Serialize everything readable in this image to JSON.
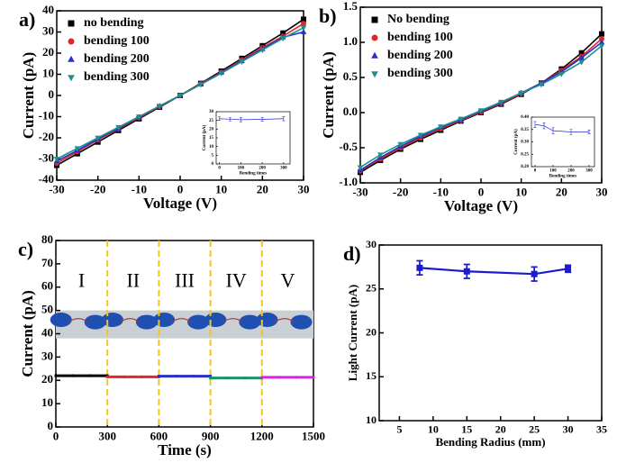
{
  "chart_data": [
    {
      "type": "line",
      "label": "a)",
      "xlabel": "Voltage  (V)",
      "ylabel": "Current (pA)",
      "xlim": [
        -30,
        30
      ],
      "ylim": [
        -40,
        40
      ],
      "xticks": [
        -30,
        -20,
        -10,
        0,
        10,
        20,
        30
      ],
      "yticks": [
        -40,
        -30,
        -20,
        -10,
        0,
        10,
        20,
        30,
        40
      ],
      "legend": "upper left",
      "x": [
        -30,
        -25,
        -20,
        -15,
        -10,
        -5,
        0,
        5,
        10,
        15,
        20,
        25,
        30
      ],
      "series": [
        {
          "name": "no bending",
          "color": "#000000",
          "marker": "square",
          "values": [
            -33,
            -27.5,
            -22,
            -16.5,
            -11,
            -5.5,
            0,
            5.7,
            11.5,
            17.5,
            23.5,
            29.5,
            36
          ]
        },
        {
          "name": "bending 100",
          "color": "#e02828",
          "marker": "circle",
          "values": [
            -32,
            -26.5,
            -21,
            -15.8,
            -10.5,
            -5.2,
            0,
            5.5,
            11,
            16.8,
            22.5,
            28,
            34
          ]
        },
        {
          "name": "bending 200",
          "color": "#2830c8",
          "marker": "triangle-up",
          "values": [
            -31,
            -26,
            -20.5,
            -15.5,
            -10.2,
            -5,
            0,
            5.3,
            10.8,
            16.3,
            22,
            27.5,
            30
          ]
        },
        {
          "name": "bending 300",
          "color": "#1f8f8f",
          "marker": "triangle-down",
          "values": [
            -30,
            -25,
            -20,
            -15,
            -10,
            -5,
            0,
            5.2,
            10.5,
            16,
            21.5,
            27,
            32
          ]
        }
      ],
      "inset": {
        "type": "line",
        "xlabel": "Bending times",
        "ylabel": "Current (pA)",
        "xlim": [
          -15,
          330
        ],
        "ylim": [
          0,
          30
        ],
        "xticks": [
          0,
          100,
          200,
          300
        ],
        "yticks": [
          0,
          5,
          10,
          15,
          20,
          25,
          30
        ],
        "x": [
          0,
          50,
          100,
          200,
          300
        ],
        "series": [
          {
            "color": "#2830c8",
            "marker": "none",
            "values": [
              26,
              25.7,
              25.4,
              25.6,
              26
            ],
            "errors": [
              1,
              1,
              1.2,
              1,
              1.2
            ]
          }
        ]
      }
    },
    {
      "type": "line",
      "label": "b)",
      "xlabel": "Voltage  (V)",
      "ylabel": "Current (pA)",
      "xlim": [
        -30,
        30
      ],
      "ylim": [
        -1,
        1.5
      ],
      "xticks": [
        -30,
        -20,
        -10,
        0,
        10,
        20,
        30
      ],
      "yticks": [
        {
          "value": -1,
          "label": "-1.0"
        },
        -0.5,
        {
          "value": 0,
          "label": "0.0"
        },
        0.5,
        {
          "value": 1,
          "label": "1.0"
        },
        1.5
      ],
      "legend": "upper left",
      "x": [
        -30,
        -25,
        -20,
        -15,
        -10,
        -5,
        0,
        5,
        10,
        15,
        20,
        25,
        30
      ],
      "series": [
        {
          "name": "No bending",
          "color": "#000000",
          "marker": "square",
          "values": [
            -0.85,
            -0.68,
            -0.52,
            -0.38,
            -0.25,
            -0.12,
            0,
            0.12,
            0.26,
            0.42,
            0.62,
            0.85,
            1.12
          ]
        },
        {
          "name": "bending 100",
          "color": "#e02828",
          "marker": "circle",
          "values": [
            -0.83,
            -0.66,
            -0.5,
            -0.36,
            -0.23,
            -0.11,
            0.01,
            0.13,
            0.27,
            0.42,
            0.6,
            0.8,
            1.05
          ]
        },
        {
          "name": "bending 200",
          "color": "#2830c8",
          "marker": "triangle-up",
          "values": [
            -0.82,
            -0.64,
            -0.48,
            -0.34,
            -0.21,
            -0.1,
            0.02,
            0.14,
            0.28,
            0.42,
            0.58,
            0.78,
            1
          ]
        },
        {
          "name": "bending  300",
          "color": "#1f8f8f",
          "marker": "triangle-down",
          "values": [
            -0.78,
            -0.6,
            -0.45,
            -0.32,
            -0.2,
            -0.09,
            0.03,
            0.15,
            0.28,
            0.4,
            0.55,
            0.72,
            0.95
          ]
        }
      ],
      "inset": {
        "type": "line",
        "xlabel": "Bending times",
        "ylabel": "Current (pA)",
        "xlim": [
          -20,
          330
        ],
        "ylim": [
          0.2,
          0.4
        ],
        "xticks": [
          0,
          100,
          200,
          300
        ],
        "yticks": [
          {
            "value": 0.2,
            "label": "0.20"
          },
          0.25,
          {
            "value": 0.3,
            "label": "0.30"
          },
          0.35,
          {
            "value": 0.4,
            "label": "0.40"
          }
        ],
        "x": [
          0,
          50,
          100,
          200,
          300
        ],
        "series": [
          {
            "color": "#2830c8",
            "marker": "none",
            "values": [
              0.37,
              0.365,
              0.345,
              0.34,
              0.34
            ],
            "errors": [
              0.012,
              0.012,
              0.012,
              0.01,
              0.008
            ]
          }
        ]
      }
    },
    {
      "type": "line",
      "label": "c)",
      "xlabel": "Time (s)",
      "ylabel": "Current (pA)",
      "xlim": [
        0,
        1500
      ],
      "ylim": [
        0,
        80
      ],
      "xticks": [
        0,
        300,
        600,
        900,
        1200,
        1500
      ],
      "yticks": [
        0,
        10,
        20,
        30,
        40,
        50,
        60,
        70,
        80
      ],
      "dividers": [
        300,
        600,
        900,
        1200
      ],
      "series": [
        {
          "name": "I",
          "color": "#000000",
          "marker": "square",
          "x": [
            0,
            100,
            200,
            300
          ],
          "values": [
            22,
            22,
            22,
            22
          ]
        },
        {
          "name": "II",
          "color": "#e02828",
          "marker": "square",
          "x": [
            300,
            400,
            500,
            600
          ],
          "values": [
            21.5,
            21.5,
            21.5,
            21.5
          ]
        },
        {
          "name": "III",
          "color": "#2830c8",
          "marker": "square",
          "x": [
            600,
            700,
            800,
            900
          ],
          "values": [
            21.8,
            21.8,
            21.8,
            21.8
          ]
        },
        {
          "name": "IV",
          "color": "#1f8f6f",
          "marker": "square",
          "x": [
            900,
            1000,
            1100,
            1200
          ],
          "values": [
            21,
            21,
            21,
            21
          ]
        },
        {
          "name": "V",
          "color": "#e020e0",
          "marker": "square",
          "x": [
            1200,
            1300,
            1400,
            1500
          ],
          "values": [
            21.3,
            21.3,
            21.3,
            21.3
          ]
        }
      ]
    },
    {
      "type": "line",
      "label": "d)",
      "xlabel": "Bending Radius (mm)",
      "ylabel": "Light Current (pA)",
      "xlim": [
        2,
        35
      ],
      "ylim": [
        10,
        30
      ],
      "xticks": [
        5,
        10,
        15,
        20,
        25,
        30,
        35
      ],
      "yticks": [
        10,
        15,
        20,
        25,
        30
      ],
      "x": [
        8,
        15,
        25,
        30
      ],
      "series": [
        {
          "color": "#1a1ad0",
          "marker": "square",
          "values": [
            27.4,
            27,
            26.7,
            27.3
          ],
          "errors": [
            0.8,
            0.8,
            0.8,
            0.4
          ]
        }
      ]
    }
  ]
}
